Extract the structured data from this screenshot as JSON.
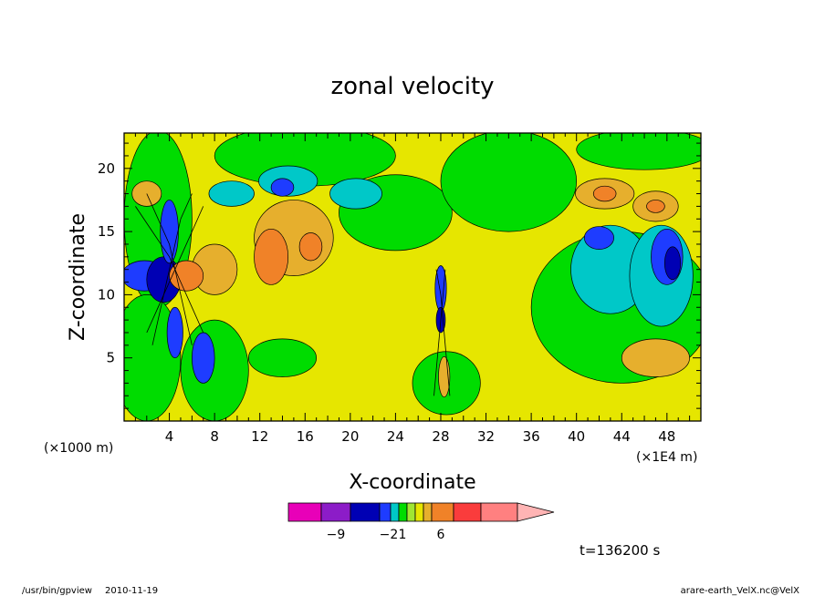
{
  "chart_data": {
    "type": "heatmap",
    "title": "zonal velocity",
    "xlabel": "X-coordinate",
    "ylabel": "Z-coordinate",
    "x_unit_left": "(×1000 m)",
    "x_unit_right": "(×1E4 m)",
    "x_ticks": [
      4,
      8,
      12,
      16,
      20,
      24,
      28,
      32,
      36,
      40,
      44,
      48
    ],
    "y_ticks": [
      5,
      10,
      15,
      20
    ],
    "xlim": [
      0,
      51
    ],
    "ylim": [
      0,
      22.8
    ],
    "colorbar": {
      "labels": [
        {
          "value": -9,
          "text": "−9"
        },
        {
          "value": -2,
          "text": "−2"
        },
        {
          "value": 1,
          "text": "1"
        },
        {
          "value": 6,
          "text": "6"
        }
      ],
      "colors": [
        "#e800b8",
        "#8c1cc8",
        "#0000b4",
        "#1e3cff",
        "#00c8c8",
        "#00dc00",
        "#a0e632",
        "#e6e600",
        "#e6af2d",
        "#f08228",
        "#fa3c3c",
        "#ff8080",
        "#ffb4b4"
      ]
    },
    "regions": [
      {
        "kind": "bg",
        "color": "#e6e600"
      },
      {
        "shape": "ellipse",
        "cx": 3,
        "cy": 16,
        "rx": 3,
        "ry": 7,
        "color": "#00dc00"
      },
      {
        "shape": "ellipse",
        "cx": 2,
        "cy": 5,
        "rx": 3,
        "ry": 5,
        "color": "#00dc00"
      },
      {
        "shape": "ellipse",
        "cx": 8,
        "cy": 4,
        "rx": 3,
        "ry": 4,
        "color": "#00dc00"
      },
      {
        "shape": "ellipse",
        "cx": 16,
        "cy": 21,
        "rx": 8,
        "ry": 2.4,
        "color": "#00dc00"
      },
      {
        "shape": "ellipse",
        "cx": 24,
        "cy": 16.5,
        "rx": 5,
        "ry": 3,
        "color": "#00dc00"
      },
      {
        "shape": "ellipse",
        "cx": 34,
        "cy": 19,
        "rx": 6,
        "ry": 4,
        "color": "#00dc00"
      },
      {
        "shape": "ellipse",
        "cx": 44,
        "cy": 9,
        "rx": 8,
        "ry": 6,
        "color": "#00dc00"
      },
      {
        "shape": "ellipse",
        "cx": 46,
        "cy": 21.5,
        "rx": 6,
        "ry": 1.6,
        "color": "#00dc00"
      },
      {
        "shape": "ellipse",
        "cx": 28.5,
        "cy": 3,
        "rx": 3,
        "ry": 2.5,
        "color": "#00dc00"
      },
      {
        "shape": "ellipse",
        "cx": 14,
        "cy": 5,
        "rx": 3,
        "ry": 1.5,
        "color": "#00dc00"
      },
      {
        "shape": "ellipse",
        "cx": 43,
        "cy": 12,
        "rx": 3.5,
        "ry": 3.5,
        "color": "#00c8c8"
      },
      {
        "shape": "ellipse",
        "cx": 47.5,
        "cy": 11.5,
        "rx": 2.8,
        "ry": 4,
        "color": "#00c8c8"
      },
      {
        "shape": "ellipse",
        "cx": 42,
        "cy": 14.5,
        "rx": 1.3,
        "ry": 0.9,
        "color": "#1e3cff"
      },
      {
        "shape": "ellipse",
        "cx": 48,
        "cy": 13,
        "rx": 1.4,
        "ry": 2.2,
        "color": "#1e3cff"
      },
      {
        "shape": "ellipse",
        "cx": 48.5,
        "cy": 12.5,
        "rx": 0.7,
        "ry": 1.3,
        "color": "#0000b4"
      },
      {
        "shape": "ellipse",
        "cx": 15,
        "cy": 14.5,
        "rx": 3.5,
        "ry": 3,
        "color": "#e6af2d"
      },
      {
        "shape": "ellipse",
        "cx": 13,
        "cy": 13,
        "rx": 1.5,
        "ry": 2.2,
        "color": "#f08228"
      },
      {
        "shape": "ellipse",
        "cx": 16.5,
        "cy": 13.8,
        "rx": 1,
        "ry": 1.1,
        "color": "#f08228"
      },
      {
        "shape": "ellipse",
        "cx": 8,
        "cy": 12,
        "rx": 2,
        "ry": 2,
        "color": "#e6af2d"
      },
      {
        "shape": "ellipse",
        "cx": 14.5,
        "cy": 19,
        "rx": 2.6,
        "ry": 1.2,
        "color": "#00c8c8"
      },
      {
        "shape": "ellipse",
        "cx": 14,
        "cy": 18.5,
        "rx": 1,
        "ry": 0.7,
        "color": "#1e3cff"
      },
      {
        "shape": "ellipse",
        "cx": 20.5,
        "cy": 18,
        "rx": 2.3,
        "ry": 1.2,
        "color": "#00c8c8"
      },
      {
        "shape": "ellipse",
        "cx": 9.5,
        "cy": 18,
        "rx": 2,
        "ry": 1,
        "color": "#00c8c8"
      },
      {
        "shape": "ellipse",
        "cx": 42.5,
        "cy": 18,
        "rx": 2.6,
        "ry": 1.2,
        "color": "#e6af2d"
      },
      {
        "shape": "ellipse",
        "cx": 42.5,
        "cy": 18,
        "rx": 1,
        "ry": 0.6,
        "color": "#f08228"
      },
      {
        "shape": "ellipse",
        "cx": 47,
        "cy": 17,
        "rx": 2,
        "ry": 1.2,
        "color": "#e6af2d"
      },
      {
        "shape": "ellipse",
        "cx": 47,
        "cy": 17,
        "rx": 0.8,
        "ry": 0.5,
        "color": "#f08228"
      },
      {
        "shape": "ellipse",
        "cx": 47,
        "cy": 5,
        "rx": 3,
        "ry": 1.5,
        "color": "#e6af2d"
      },
      {
        "shape": "ellipse",
        "cx": 7,
        "cy": 5,
        "rx": 1,
        "ry": 2,
        "color": "#1e3cff"
      },
      {
        "shape": "ellipse",
        "cx": 1.8,
        "cy": 11.5,
        "rx": 2,
        "ry": 1.2,
        "color": "#1e3cff"
      },
      {
        "shape": "ellipse",
        "cx": 3.5,
        "cy": 11.2,
        "rx": 1.5,
        "ry": 1.8,
        "color": "#0000b4"
      },
      {
        "shape": "ellipse",
        "cx": 5.5,
        "cy": 11.5,
        "rx": 1.5,
        "ry": 1.2,
        "color": "#f08228"
      },
      {
        "shape": "ellipse",
        "cx": 4,
        "cy": 15,
        "rx": 0.8,
        "ry": 2.5,
        "color": "#1e3cff"
      },
      {
        "shape": "ellipse",
        "cx": 4.5,
        "cy": 7,
        "rx": 0.7,
        "ry": 2,
        "color": "#1e3cff"
      },
      {
        "shape": "ellipse",
        "cx": 28,
        "cy": 10.5,
        "rx": 0.5,
        "ry": 1.8,
        "color": "#1e3cff"
      },
      {
        "shape": "ellipse",
        "cx": 28,
        "cy": 8,
        "rx": 0.4,
        "ry": 1,
        "color": "#0000b4"
      },
      {
        "shape": "ellipse",
        "cx": 28.3,
        "cy": 3.5,
        "rx": 0.5,
        "ry": 1.6,
        "color": "#e6af2d"
      },
      {
        "shape": "ellipse",
        "cx": 2,
        "cy": 18,
        "rx": 1.3,
        "ry": 1,
        "color": "#e6af2d"
      }
    ],
    "contour_lines": [
      {
        "d": [
          [
            2,
            18
          ],
          [
            3,
            16
          ],
          [
            4,
            14
          ],
          [
            4.5,
            12
          ],
          [
            5,
            10
          ],
          [
            5.5,
            8
          ],
          [
            6,
            6
          ]
        ]
      },
      {
        "d": [
          [
            6,
            18
          ],
          [
            5,
            16
          ],
          [
            4.5,
            14
          ],
          [
            4,
            12
          ],
          [
            3.5,
            10
          ],
          [
            3,
            8
          ],
          [
            2.5,
            6
          ]
        ]
      },
      {
        "d": [
          [
            1,
            17
          ],
          [
            2.5,
            15
          ],
          [
            4,
            13
          ],
          [
            5,
            11
          ],
          [
            6,
            9
          ],
          [
            7,
            7
          ]
        ]
      },
      {
        "d": [
          [
            7,
            17
          ],
          [
            6,
            15
          ],
          [
            5,
            13
          ],
          [
            4,
            11
          ],
          [
            3,
            9
          ],
          [
            2,
            7
          ]
        ]
      },
      {
        "d": [
          [
            27.6,
            12
          ],
          [
            28,
            10
          ],
          [
            28.2,
            8
          ],
          [
            28.4,
            6
          ],
          [
            28.6,
            4
          ],
          [
            28.8,
            2
          ]
        ]
      },
      {
        "d": [
          [
            28.4,
            12
          ],
          [
            28.2,
            10
          ],
          [
            28,
            8
          ],
          [
            27.8,
            6
          ],
          [
            27.6,
            4
          ],
          [
            27.4,
            2
          ]
        ]
      }
    ]
  },
  "footer": {
    "time_label": "t=136200 s",
    "program": "/usr/bin/gpview",
    "date": "2010-11-19",
    "file": "arare-earth_VelX.nc@VelX"
  }
}
